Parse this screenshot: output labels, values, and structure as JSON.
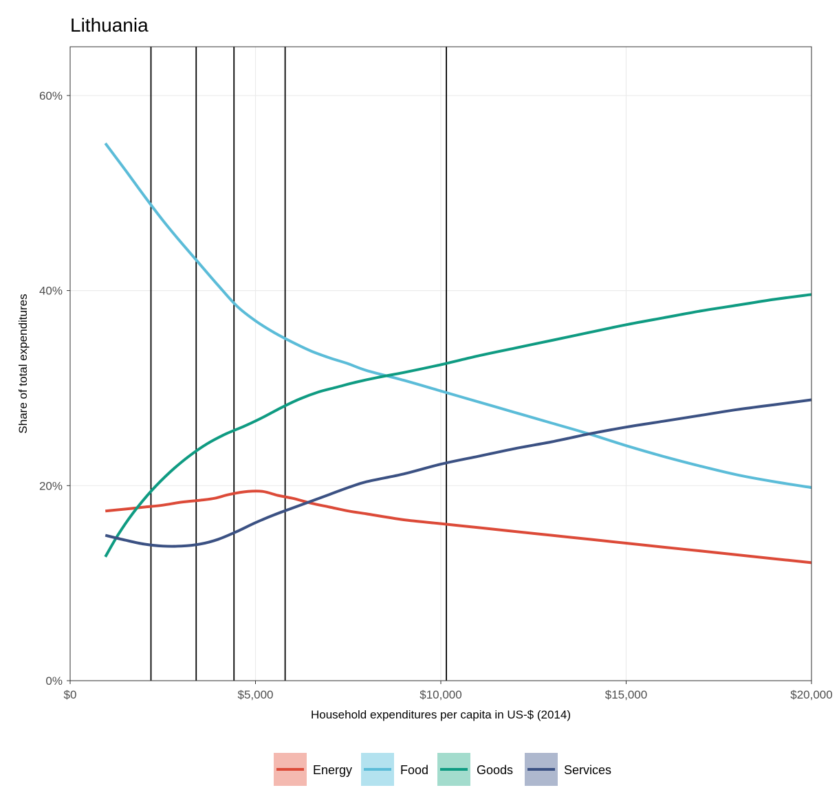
{
  "chart_data": {
    "type": "line",
    "title": "Lithuania",
    "xlabel": "Household expenditures per capita in US-$ (2014)",
    "ylabel": "Share of total expenditures",
    "xlim": [
      0,
      20000
    ],
    "ylim": [
      0,
      0.65
    ],
    "x_ticks": [
      {
        "value": 0,
        "label": "$0"
      },
      {
        "value": 5000,
        "label": "$5,000"
      },
      {
        "value": 10000,
        "label": "$10,000"
      },
      {
        "value": 15000,
        "label": "$15,000"
      },
      {
        "value": 20000,
        "label": "$20,000"
      }
    ],
    "y_ticks": [
      {
        "value": 0,
        "label": "0%"
      },
      {
        "value": 0.2,
        "label": "20%"
      },
      {
        "value": 0.4,
        "label": "40%"
      },
      {
        "value": 0.6,
        "label": "60%"
      }
    ],
    "grid": true,
    "legend_position": "bottom",
    "vertical_lines": [
      2180,
      3400,
      4420,
      5800,
      10150
    ],
    "series": [
      {
        "name": "Energy",
        "color": "#dc4a38",
        "fill": "#f4b9b0",
        "points": [
          [
            950,
            0.174
          ],
          [
            1500,
            0.176
          ],
          [
            2000,
            0.178
          ],
          [
            2500,
            0.18
          ],
          [
            3000,
            0.183
          ],
          [
            3500,
            0.185
          ],
          [
            3900,
            0.187
          ],
          [
            4300,
            0.191
          ],
          [
            4800,
            0.194
          ],
          [
            5200,
            0.194
          ],
          [
            5600,
            0.19
          ],
          [
            6000,
            0.187
          ],
          [
            6500,
            0.182
          ],
          [
            7000,
            0.178
          ],
          [
            7500,
            0.174
          ],
          [
            8000,
            0.171
          ],
          [
            9000,
            0.165
          ],
          [
            10000,
            0.161
          ],
          [
            11000,
            0.157
          ],
          [
            12000,
            0.153
          ],
          [
            13000,
            0.149
          ],
          [
            14000,
            0.145
          ],
          [
            15000,
            0.141
          ],
          [
            16000,
            0.137
          ],
          [
            17000,
            0.133
          ],
          [
            18000,
            0.129
          ],
          [
            19000,
            0.125
          ],
          [
            20000,
            0.121
          ]
        ]
      },
      {
        "name": "Food",
        "color": "#5bbcd8",
        "fill": "#b3e2ef",
        "points": [
          [
            950,
            0.551
          ],
          [
            1500,
            0.523
          ],
          [
            2000,
            0.497
          ],
          [
            2500,
            0.472
          ],
          [
            3000,
            0.449
          ],
          [
            3500,
            0.427
          ],
          [
            4000,
            0.405
          ],
          [
            4500,
            0.384
          ],
          [
            5000,
            0.369
          ],
          [
            5500,
            0.357
          ],
          [
            6000,
            0.347
          ],
          [
            6500,
            0.338
          ],
          [
            7000,
            0.331
          ],
          [
            7500,
            0.325
          ],
          [
            8000,
            0.318
          ],
          [
            9000,
            0.308
          ],
          [
            10000,
            0.297
          ],
          [
            11000,
            0.286
          ],
          [
            12000,
            0.275
          ],
          [
            13000,
            0.264
          ],
          [
            14000,
            0.253
          ],
          [
            15000,
            0.241
          ],
          [
            16000,
            0.23
          ],
          [
            17000,
            0.22
          ],
          [
            18000,
            0.211
          ],
          [
            19000,
            0.204
          ],
          [
            20000,
            0.198
          ]
        ]
      },
      {
        "name": "Goods",
        "color": "#0f9b82",
        "fill": "#a3dccd",
        "points": [
          [
            950,
            0.127
          ],
          [
            1300,
            0.15
          ],
          [
            1700,
            0.172
          ],
          [
            2200,
            0.195
          ],
          [
            2700,
            0.214
          ],
          [
            3200,
            0.23
          ],
          [
            3700,
            0.243
          ],
          [
            4200,
            0.253
          ],
          [
            4700,
            0.261
          ],
          [
            5200,
            0.27
          ],
          [
            5700,
            0.28
          ],
          [
            6200,
            0.289
          ],
          [
            6700,
            0.296
          ],
          [
            7200,
            0.301
          ],
          [
            7700,
            0.306
          ],
          [
            8300,
            0.311
          ],
          [
            9000,
            0.316
          ],
          [
            10000,
            0.324
          ],
          [
            11000,
            0.333
          ],
          [
            12000,
            0.341
          ],
          [
            13000,
            0.349
          ],
          [
            14000,
            0.357
          ],
          [
            15000,
            0.365
          ],
          [
            16000,
            0.372
          ],
          [
            17000,
            0.379
          ],
          [
            18000,
            0.385
          ],
          [
            19000,
            0.391
          ],
          [
            20000,
            0.396
          ]
        ]
      },
      {
        "name": "Services",
        "color": "#3b5183",
        "fill": "#aeb8ce",
        "points": [
          [
            950,
            0.149
          ],
          [
            1500,
            0.144
          ],
          [
            2000,
            0.14
          ],
          [
            2500,
            0.138
          ],
          [
            3000,
            0.138
          ],
          [
            3500,
            0.14
          ],
          [
            4000,
            0.145
          ],
          [
            4500,
            0.153
          ],
          [
            5000,
            0.162
          ],
          [
            5500,
            0.17
          ],
          [
            6000,
            0.177
          ],
          [
            6500,
            0.184
          ],
          [
            7000,
            0.191
          ],
          [
            7500,
            0.198
          ],
          [
            8000,
            0.204
          ],
          [
            9000,
            0.212
          ],
          [
            10000,
            0.222
          ],
          [
            11000,
            0.23
          ],
          [
            12000,
            0.238
          ],
          [
            13000,
            0.245
          ],
          [
            14000,
            0.253
          ],
          [
            15000,
            0.26
          ],
          [
            16000,
            0.266
          ],
          [
            17000,
            0.272
          ],
          [
            18000,
            0.278
          ],
          [
            19000,
            0.283
          ],
          [
            20000,
            0.288
          ]
        ]
      }
    ]
  }
}
